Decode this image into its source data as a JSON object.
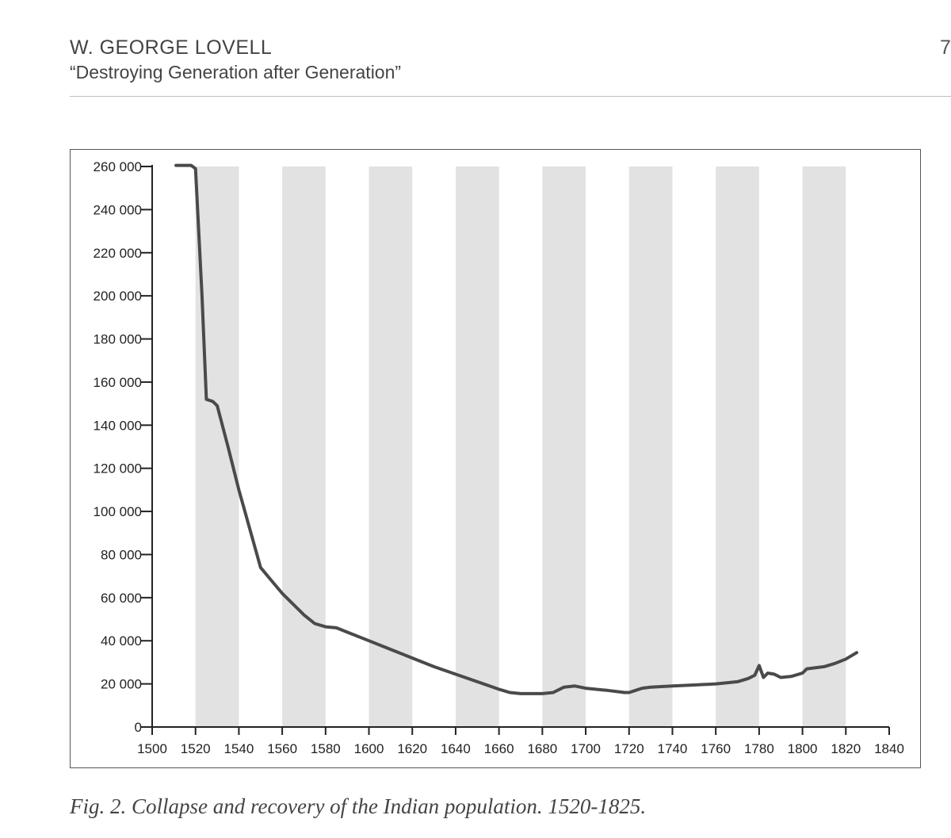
{
  "header": {
    "author": "W. GEORGE LOVELL",
    "title": "“Destroying Generation after Generation”",
    "page_number": "7"
  },
  "caption": "Fig. 2. Collapse and recovery of the Indian population. 1520-1825.",
  "chart_data": {
    "type": "line",
    "title": "",
    "xlabel": "",
    "ylabel": "",
    "xlim": [
      1500,
      1840
    ],
    "ylim": [
      0,
      260000
    ],
    "x_ticks": [
      1500,
      1520,
      1540,
      1560,
      1580,
      1600,
      1620,
      1640,
      1660,
      1680,
      1700,
      1720,
      1740,
      1760,
      1780,
      1800,
      1820,
      1840
    ],
    "x_tick_labels": [
      "1500",
      "1520",
      "1540",
      "1560",
      "1580",
      "1600",
      "1620",
      "1640",
      "1660",
      "1680",
      "1700",
      "1720",
      "1740",
      "1760",
      "1780",
      "1800",
      "1820",
      "1840"
    ],
    "y_ticks": [
      0,
      20000,
      40000,
      60000,
      80000,
      100000,
      120000,
      140000,
      160000,
      180000,
      200000,
      220000,
      240000,
      260000
    ],
    "y_tick_labels": [
      "0",
      "20 000",
      "40 000",
      "60 000",
      "80 000",
      "100 000",
      "120 000",
      "140 000",
      "160 000",
      "180 000",
      "200 000",
      "220 000",
      "240 000",
      "260 000"
    ],
    "shaded_bands": [
      [
        1520,
        1540
      ],
      [
        1560,
        1580
      ],
      [
        1600,
        1620
      ],
      [
        1640,
        1660
      ],
      [
        1680,
        1700
      ],
      [
        1720,
        1740
      ],
      [
        1760,
        1780
      ],
      [
        1800,
        1820
      ]
    ],
    "band_color": "#e2e2e2",
    "line_color": "#4a4a4a",
    "grid": false,
    "series": [
      {
        "x": [
          1511,
          1518,
          1520,
          1523,
          1525,
          1528,
          1530,
          1535,
          1540,
          1545,
          1550,
          1555,
          1560,
          1565,
          1570,
          1575,
          1580,
          1585,
          1590,
          1600,
          1610,
          1620,
          1630,
          1640,
          1650,
          1660,
          1665,
          1670,
          1680,
          1685,
          1690,
          1695,
          1700,
          1710,
          1718,
          1720,
          1723,
          1726,
          1730,
          1740,
          1750,
          1760,
          1765,
          1770,
          1775,
          1778,
          1780,
          1782,
          1784,
          1787,
          1790,
          1795,
          1800,
          1802,
          1810,
          1815,
          1820,
          1825
        ],
        "y": [
          260500,
          260500,
          259000,
          200000,
          152000,
          151000,
          149000,
          130000,
          110000,
          92000,
          74000,
          68000,
          62000,
          57000,
          52000,
          48000,
          46500,
          46000,
          44000,
          40000,
          36000,
          32000,
          28000,
          24500,
          21000,
          17500,
          16000,
          15500,
          15500,
          16000,
          18500,
          19000,
          18000,
          17000,
          16000,
          16000,
          17000,
          18000,
          18500,
          19000,
          19500,
          20000,
          20500,
          21000,
          22500,
          24000,
          28500,
          23000,
          25000,
          24500,
          23000,
          23500,
          25000,
          27000,
          28000,
          29500,
          31500,
          34500
        ]
      }
    ]
  }
}
